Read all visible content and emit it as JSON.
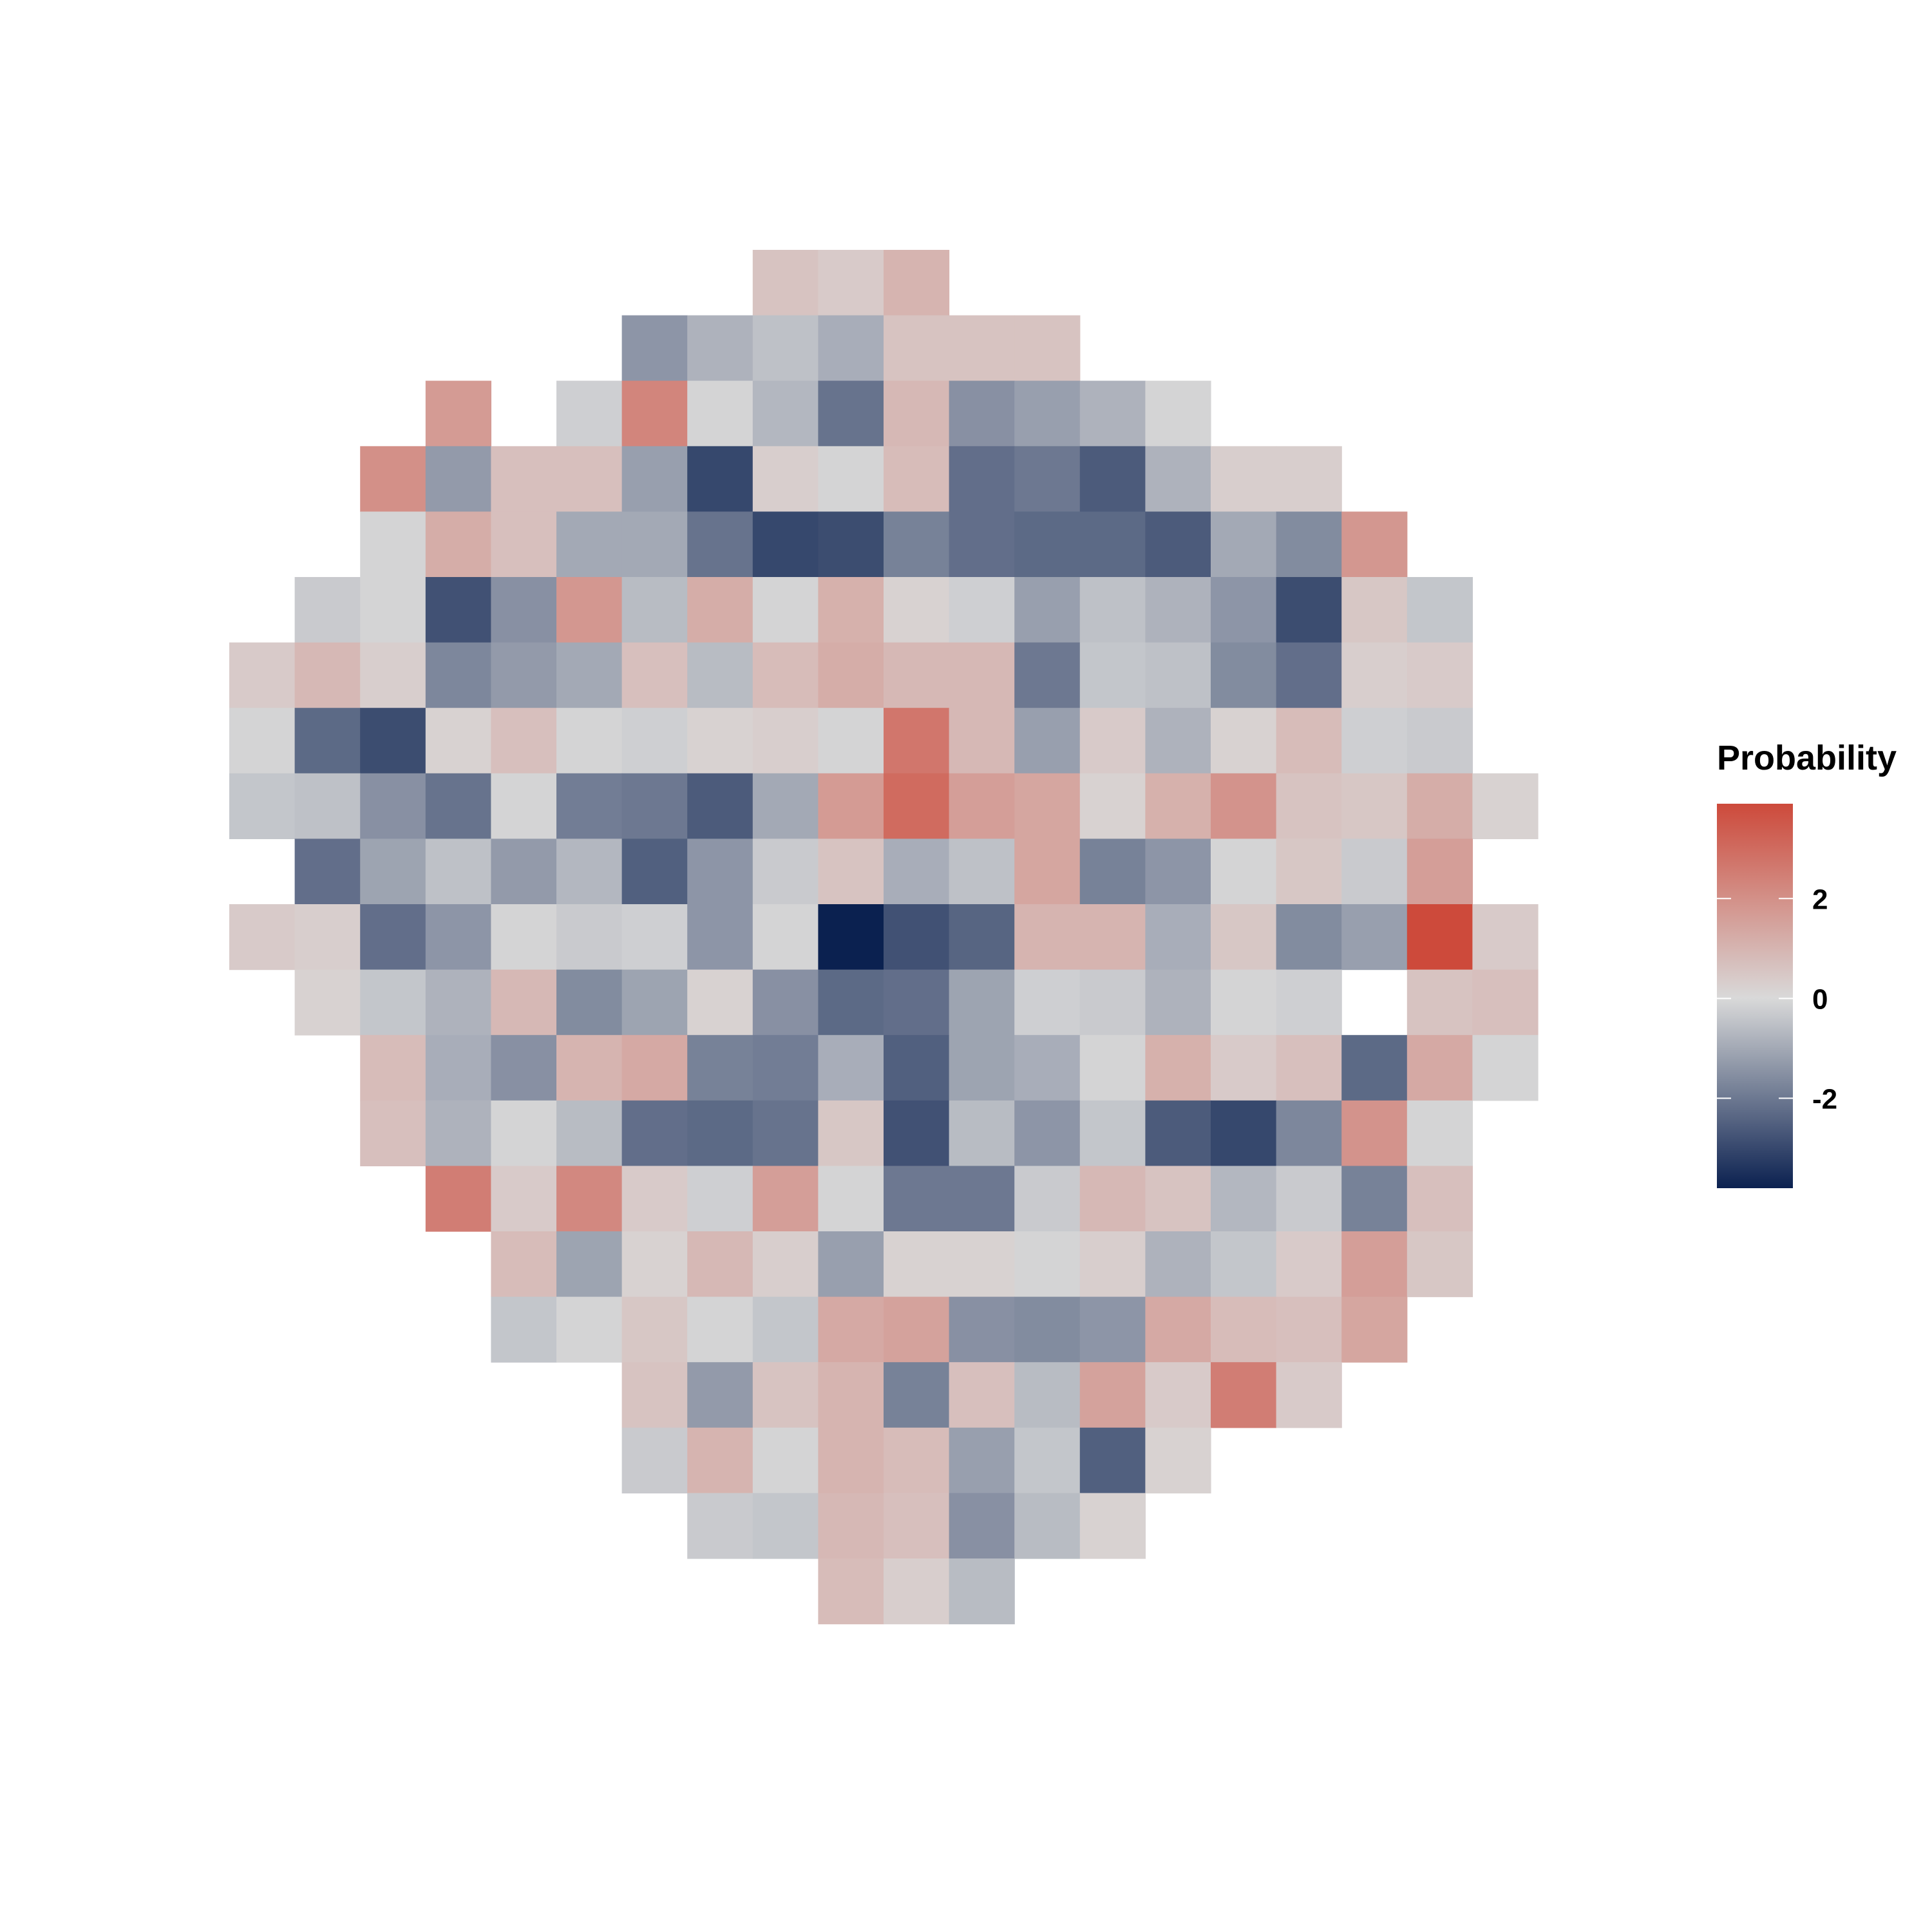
{
  "chart_data": {
    "type": "heatmap",
    "title": "",
    "xlabel": "",
    "ylabel": "",
    "grid": false,
    "color_scale": {
      "low": "#0b2150",
      "mid": "#d9d9d9",
      "high": "#cd4a3b",
      "domain": [
        -3.8,
        3.9
      ]
    },
    "legend": {
      "title": "Probability",
      "placement": "right",
      "ticks": [
        {
          "value": 2,
          "label": "2"
        },
        {
          "value": 0,
          "label": "0"
        },
        {
          "value": -2,
          "label": "-2"
        }
      ]
    },
    "columns": 20,
    "rows": [
      {
        "start": 8,
        "values": [
          0.6,
          0.4,
          1.0
        ]
      },
      {
        "start": 6,
        "values": [
          -1.4,
          -0.8,
          -0.5,
          -0.9,
          0.6,
          0.6,
          0.6
        ]
      },
      {
        "start": 3,
        "values": [
          1.7,
          null,
          -0.2,
          2.3,
          -0.1,
          -0.7,
          -2.1,
          0.9,
          -1.5,
          -1.2,
          -0.8,
          -0.1
        ]
      },
      {
        "start": 2,
        "values": [
          2.0,
          -1.3,
          0.7,
          0.7,
          -1.2,
          -3.0,
          0.3,
          -0.1,
          0.8,
          -2.2,
          -2.0,
          -2.6,
          -0.8,
          0.3,
          0.3
        ]
      },
      {
        "start": 2,
        "values": [
          -0.1,
          1.2,
          0.7,
          -1.0,
          -1.0,
          -2.1,
          -3.0,
          -2.9,
          -1.8,
          -2.2,
          -2.3,
          -2.3,
          -2.6,
          -1.0,
          -1.6,
          1.8
        ]
      },
      {
        "start": 1,
        "values": [
          -0.3,
          -0.1,
          -2.8,
          -1.5,
          1.8,
          -0.6,
          1.2,
          -0.1,
          1.1,
          0.2,
          -0.2,
          -1.2,
          -0.5,
          -0.8,
          -1.4,
          -2.9,
          0.5,
          -0.4
        ]
      },
      {
        "start": 0,
        "values": [
          0.4,
          0.9,
          0.3,
          -1.7,
          -1.3,
          -1.0,
          0.7,
          -0.6,
          0.8,
          1.2,
          0.9,
          0.9,
          -2.0,
          -0.4,
          -0.5,
          -1.6,
          -2.2,
          0.3,
          0.4
        ]
      },
      {
        "start": 0,
        "values": [
          -0.1,
          -2.3,
          -2.9,
          0.2,
          0.7,
          -0.1,
          -0.2,
          0.2,
          0.3,
          -0.1,
          2.7,
          0.9,
          -1.2,
          0.4,
          -0.8,
          0.2,
          0.8,
          -0.2,
          -0.3
        ]
      },
      {
        "start": 0,
        "values": [
          -0.4,
          -0.5,
          -1.5,
          -2.1,
          -0.1,
          -1.9,
          -2.0,
          -2.6,
          -1.0,
          1.7,
          3.0,
          1.6,
          1.4,
          0.2,
          1.1,
          1.9,
          0.6,
          0.5,
          1.2,
          0.2
        ]
      },
      {
        "start": 1,
        "values": [
          -2.2,
          -1.1,
          -0.5,
          -1.3,
          -0.7,
          -2.5,
          -1.4,
          -0.3,
          0.6,
          -0.9,
          -0.5,
          1.4,
          -1.8,
          -1.4,
          -0.1,
          0.5,
          -0.3,
          1.6
        ]
      },
      {
        "start": 0,
        "values": [
          0.4,
          0.3,
          -2.2,
          -1.4,
          -0.1,
          -0.3,
          -0.2,
          -1.4,
          -0.1,
          -3.8,
          -2.8,
          -2.4,
          1.0,
          1.0,
          -0.9,
          0.5,
          -1.6,
          -1.2,
          3.9,
          0.4
        ]
      },
      {
        "start": 1,
        "values": [
          0.2,
          -0.4,
          -0.8,
          0.9,
          -1.6,
          -1.1,
          0.2,
          -1.5,
          -2.3,
          -2.2,
          -1.1,
          -0.2,
          -0.3,
          -0.8,
          -0.1,
          -0.2,
          null,
          0.6,
          0.7
        ]
      },
      {
        "start": 2,
        "values": [
          0.8,
          -0.9,
          -1.5,
          1.0,
          1.3,
          -1.8,
          -1.9,
          -0.9,
          -2.5,
          -1.1,
          -0.9,
          -0.1,
          1.1,
          0.4,
          0.7,
          -2.3,
          1.3,
          -0.1
        ]
      },
      {
        "start": 2,
        "values": [
          0.7,
          -0.8,
          -0.1,
          -0.6,
          -2.2,
          -2.3,
          -2.1,
          0.5,
          -2.8,
          -0.6,
          -1.4,
          -0.4,
          -2.6,
          -3.0,
          -1.7,
          1.9,
          -0.1
        ]
      },
      {
        "start": 3,
        "values": [
          2.5,
          0.4,
          2.2,
          0.4,
          -0.2,
          1.6,
          -0.1,
          -2.0,
          -2.0,
          -0.3,
          0.9,
          0.6,
          -0.7,
          -0.3,
          -1.8,
          0.7
        ]
      },
      {
        "start": 4,
        "values": [
          0.8,
          -1.1,
          0.2,
          0.9,
          0.3,
          -1.2,
          0.2,
          0.2,
          -0.1,
          0.3,
          -0.8,
          -0.4,
          0.4,
          1.6,
          0.5
        ]
      },
      {
        "start": 4,
        "values": [
          -0.4,
          -0.1,
          0.5,
          -0.1,
          -0.4,
          1.3,
          1.5,
          -1.5,
          -1.6,
          -1.4,
          1.3,
          0.8,
          0.7,
          1.4
        ]
      },
      {
        "start": 6,
        "values": [
          0.6,
          -1.3,
          0.6,
          1.0,
          -1.8,
          0.7,
          -0.6,
          1.5,
          0.4,
          2.5,
          0.4
        ]
      },
      {
        "start": 6,
        "values": [
          -0.3,
          1.0,
          -0.1,
          1.0,
          0.8,
          -1.2,
          -0.4,
          -2.5,
          0.2
        ]
      },
      {
        "start": 7,
        "values": [
          -0.3,
          -0.4,
          0.9,
          0.7,
          -1.5,
          -0.6,
          0.2
        ]
      },
      {
        "start": 9,
        "values": [
          0.8,
          0.3,
          -0.6
        ]
      }
    ]
  }
}
